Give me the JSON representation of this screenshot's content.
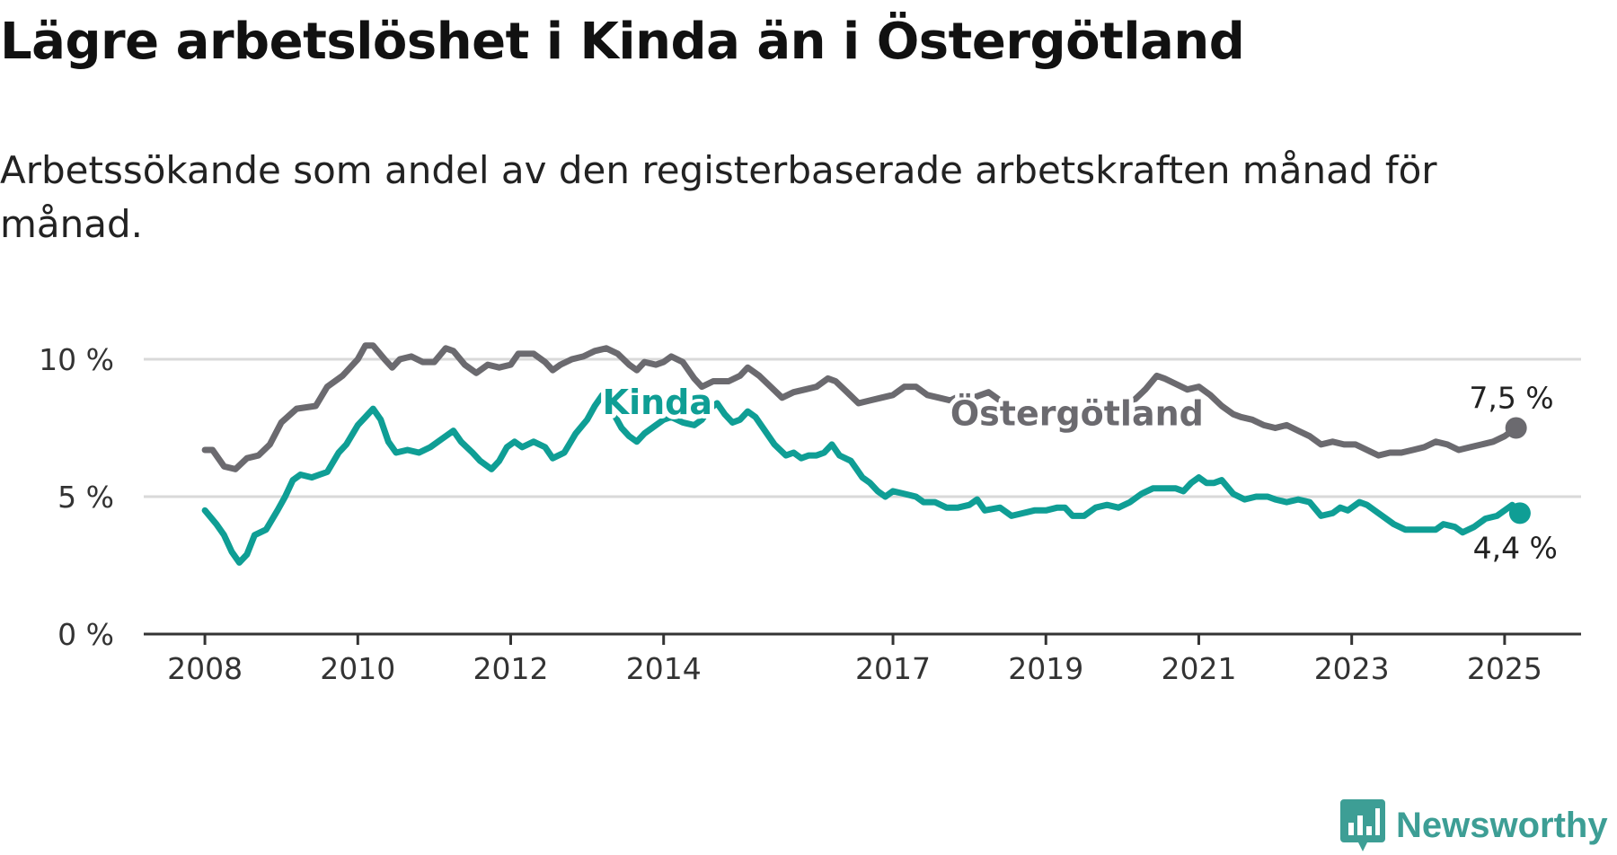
{
  "title": "Lägre arbetslöshet i Kinda än i Östergötland",
  "subtitle": "Arbetssökande som andel av den registerbaserade arbetskraften månad för månad.",
  "brand": {
    "name": "Newsworthy",
    "icon": "newsworthy-logo-icon",
    "color": "#3d9e95"
  },
  "chart_data": {
    "type": "line",
    "x_unit": "year",
    "xlim": [
      2007.2,
      2026.0
    ],
    "ylim": [
      0,
      10.5
    ],
    "grid": true,
    "y_ticks": [
      {
        "value": 0,
        "label": "0 %"
      },
      {
        "value": 5,
        "label": "5 %"
      },
      {
        "value": 10,
        "label": "10 %"
      }
    ],
    "x_ticks": [
      {
        "value": 2008,
        "label": "2008"
      },
      {
        "value": 2010,
        "label": "2010"
      },
      {
        "value": 2012,
        "label": "2012"
      },
      {
        "value": 2014,
        "label": "2014"
      },
      {
        "value": 2017,
        "label": "2017"
      },
      {
        "value": 2019,
        "label": "2019"
      },
      {
        "value": 2021,
        "label": "2021"
      },
      {
        "value": 2023,
        "label": "2023"
      },
      {
        "value": 2025,
        "label": "2025"
      }
    ],
    "series": [
      {
        "name": "Östergötland",
        "color": "#6b6a6f",
        "end_label": "7,5 %",
        "points": [
          [
            2008.0,
            6.7
          ],
          [
            2008.1,
            6.7
          ],
          [
            2008.25,
            6.1
          ],
          [
            2008.4,
            6.0
          ],
          [
            2008.55,
            6.4
          ],
          [
            2008.7,
            6.5
          ],
          [
            2008.85,
            6.9
          ],
          [
            2009.0,
            7.7
          ],
          [
            2009.2,
            8.2
          ],
          [
            2009.45,
            8.3
          ],
          [
            2009.6,
            9.0
          ],
          [
            2009.8,
            9.4
          ],
          [
            2010.0,
            10.0
          ],
          [
            2010.1,
            10.5
          ],
          [
            2010.2,
            10.5
          ],
          [
            2010.35,
            10.0
          ],
          [
            2010.45,
            9.7
          ],
          [
            2010.55,
            10.0
          ],
          [
            2010.7,
            10.1
          ],
          [
            2010.85,
            9.9
          ],
          [
            2011.0,
            9.9
          ],
          [
            2011.15,
            10.4
          ],
          [
            2011.25,
            10.3
          ],
          [
            2011.4,
            9.8
          ],
          [
            2011.55,
            9.5
          ],
          [
            2011.7,
            9.8
          ],
          [
            2011.85,
            9.7
          ],
          [
            2012.0,
            9.8
          ],
          [
            2012.1,
            10.2
          ],
          [
            2012.3,
            10.2
          ],
          [
            2012.45,
            9.9
          ],
          [
            2012.55,
            9.6
          ],
          [
            2012.65,
            9.8
          ],
          [
            2012.8,
            10.0
          ],
          [
            2012.95,
            10.1
          ],
          [
            2013.1,
            10.3
          ],
          [
            2013.25,
            10.4
          ],
          [
            2013.4,
            10.2
          ],
          [
            2013.55,
            9.8
          ],
          [
            2013.65,
            9.6
          ],
          [
            2013.75,
            9.9
          ],
          [
            2013.9,
            9.8
          ],
          [
            2014.0,
            9.9
          ],
          [
            2014.1,
            10.1
          ],
          [
            2014.25,
            9.9
          ],
          [
            2014.4,
            9.3
          ],
          [
            2014.5,
            9.0
          ],
          [
            2014.65,
            9.2
          ],
          [
            2014.85,
            9.2
          ],
          [
            2015.0,
            9.4
          ],
          [
            2015.1,
            9.7
          ],
          [
            2015.25,
            9.4
          ],
          [
            2015.4,
            9.0
          ],
          [
            2015.55,
            8.6
          ],
          [
            2015.7,
            8.8
          ],
          [
            2015.85,
            8.9
          ],
          [
            2016.0,
            9.0
          ],
          [
            2016.15,
            9.3
          ],
          [
            2016.25,
            9.2
          ],
          [
            2016.4,
            8.8
          ],
          [
            2016.55,
            8.4
          ],
          [
            2016.7,
            8.5
          ],
          [
            2016.85,
            8.6
          ],
          [
            2017.0,
            8.7
          ],
          [
            2017.15,
            9.0
          ],
          [
            2017.3,
            9.0
          ],
          [
            2017.45,
            8.7
          ],
          [
            2017.6,
            8.6
          ],
          [
            2017.75,
            8.5
          ],
          [
            2017.9,
            8.7
          ],
          [
            2018.05,
            8.6
          ],
          [
            2018.25,
            8.8
          ],
          [
            2018.4,
            8.5
          ],
          [
            2018.55,
            8.2
          ],
          [
            2018.7,
            8.2
          ],
          [
            2018.85,
            8.2
          ],
          [
            2019.0,
            8.2
          ],
          [
            2019.15,
            8.1
          ],
          [
            2019.3,
            8.0
          ],
          [
            2019.5,
            8.2
          ],
          [
            2019.65,
            8.1
          ],
          [
            2019.8,
            8.3
          ],
          [
            2020.0,
            8.2
          ],
          [
            2020.15,
            8.5
          ],
          [
            2020.3,
            8.9
          ],
          [
            2020.45,
            9.4
          ],
          [
            2020.55,
            9.3
          ],
          [
            2020.7,
            9.1
          ],
          [
            2020.85,
            8.9
          ],
          [
            2021.0,
            9.0
          ],
          [
            2021.15,
            8.7
          ],
          [
            2021.3,
            8.3
          ],
          [
            2021.45,
            8.0
          ],
          [
            2021.55,
            7.9
          ],
          [
            2021.7,
            7.8
          ],
          [
            2021.85,
            7.6
          ],
          [
            2022.0,
            7.5
          ],
          [
            2022.15,
            7.6
          ],
          [
            2022.3,
            7.4
          ],
          [
            2022.45,
            7.2
          ],
          [
            2022.6,
            6.9
          ],
          [
            2022.75,
            7.0
          ],
          [
            2022.9,
            6.9
          ],
          [
            2023.05,
            6.9
          ],
          [
            2023.2,
            6.7
          ],
          [
            2023.35,
            6.5
          ],
          [
            2023.5,
            6.6
          ],
          [
            2023.65,
            6.6
          ],
          [
            2023.8,
            6.7
          ],
          [
            2023.95,
            6.8
          ],
          [
            2024.1,
            7.0
          ],
          [
            2024.25,
            6.9
          ],
          [
            2024.4,
            6.7
          ],
          [
            2024.55,
            6.8
          ],
          [
            2024.7,
            6.9
          ],
          [
            2024.85,
            7.0
          ],
          [
            2025.0,
            7.2
          ],
          [
            2025.15,
            7.5
          ]
        ]
      },
      {
        "name": "Kinda",
        "color": "#0f9e95",
        "end_label": "4,4 %",
        "points": [
          [
            2008.0,
            4.5
          ],
          [
            2008.15,
            4.0
          ],
          [
            2008.25,
            3.6
          ],
          [
            2008.35,
            3.0
          ],
          [
            2008.45,
            2.6
          ],
          [
            2008.55,
            2.9
          ],
          [
            2008.65,
            3.6
          ],
          [
            2008.8,
            3.8
          ],
          [
            2008.95,
            4.5
          ],
          [
            2009.05,
            5.0
          ],
          [
            2009.15,
            5.6
          ],
          [
            2009.25,
            5.8
          ],
          [
            2009.4,
            5.7
          ],
          [
            2009.5,
            5.8
          ],
          [
            2009.6,
            5.9
          ],
          [
            2009.75,
            6.6
          ],
          [
            2009.85,
            6.9
          ],
          [
            2010.0,
            7.6
          ],
          [
            2010.1,
            7.9
          ],
          [
            2010.2,
            8.2
          ],
          [
            2010.3,
            7.8
          ],
          [
            2010.4,
            7.0
          ],
          [
            2010.5,
            6.6
          ],
          [
            2010.65,
            6.7
          ],
          [
            2010.8,
            6.6
          ],
          [
            2010.95,
            6.8
          ],
          [
            2011.1,
            7.1
          ],
          [
            2011.25,
            7.4
          ],
          [
            2011.35,
            7.0
          ],
          [
            2011.5,
            6.6
          ],
          [
            2011.6,
            6.3
          ],
          [
            2011.75,
            6.0
          ],
          [
            2011.85,
            6.3
          ],
          [
            2011.95,
            6.8
          ],
          [
            2012.05,
            7.0
          ],
          [
            2012.15,
            6.8
          ],
          [
            2012.3,
            7.0
          ],
          [
            2012.45,
            6.8
          ],
          [
            2012.55,
            6.4
          ],
          [
            2012.7,
            6.6
          ],
          [
            2012.85,
            7.3
          ],
          [
            2013.0,
            7.8
          ],
          [
            2013.1,
            8.3
          ],
          [
            2013.2,
            8.7
          ],
          [
            2013.35,
            8.0
          ],
          [
            2013.45,
            7.5
          ],
          [
            2013.55,
            7.2
          ],
          [
            2013.65,
            7.0
          ],
          [
            2013.75,
            7.3
          ],
          [
            2013.9,
            7.6
          ],
          [
            2014.0,
            7.8
          ],
          [
            2014.1,
            7.9
          ],
          [
            2014.25,
            7.7
          ],
          [
            2014.4,
            7.6
          ],
          [
            2014.5,
            7.8
          ],
          [
            2014.6,
            8.2
          ],
          [
            2014.7,
            8.4
          ],
          [
            2014.8,
            8.0
          ],
          [
            2014.9,
            7.7
          ],
          [
            2015.0,
            7.8
          ],
          [
            2015.1,
            8.1
          ],
          [
            2015.2,
            7.9
          ],
          [
            2015.3,
            7.5
          ],
          [
            2015.45,
            6.9
          ],
          [
            2015.6,
            6.5
          ],
          [
            2015.7,
            6.6
          ],
          [
            2015.8,
            6.4
          ],
          [
            2015.9,
            6.5
          ],
          [
            2016.0,
            6.5
          ],
          [
            2016.1,
            6.6
          ],
          [
            2016.2,
            6.9
          ],
          [
            2016.3,
            6.5
          ],
          [
            2016.45,
            6.3
          ],
          [
            2016.6,
            5.7
          ],
          [
            2016.7,
            5.5
          ],
          [
            2016.8,
            5.2
          ],
          [
            2016.9,
            5.0
          ],
          [
            2017.0,
            5.2
          ],
          [
            2017.15,
            5.1
          ],
          [
            2017.3,
            5.0
          ],
          [
            2017.4,
            4.8
          ],
          [
            2017.55,
            4.8
          ],
          [
            2017.7,
            4.6
          ],
          [
            2017.85,
            4.6
          ],
          [
            2018.0,
            4.7
          ],
          [
            2018.1,
            4.9
          ],
          [
            2018.2,
            4.5
          ],
          [
            2018.4,
            4.6
          ],
          [
            2018.55,
            4.3
          ],
          [
            2018.7,
            4.4
          ],
          [
            2018.85,
            4.5
          ],
          [
            2019.0,
            4.5
          ],
          [
            2019.15,
            4.6
          ],
          [
            2019.25,
            4.6
          ],
          [
            2019.35,
            4.3
          ],
          [
            2019.5,
            4.3
          ],
          [
            2019.65,
            4.6
          ],
          [
            2019.8,
            4.7
          ],
          [
            2019.95,
            4.6
          ],
          [
            2020.1,
            4.8
          ],
          [
            2020.25,
            5.1
          ],
          [
            2020.4,
            5.3
          ],
          [
            2020.55,
            5.3
          ],
          [
            2020.7,
            5.3
          ],
          [
            2020.8,
            5.2
          ],
          [
            2020.9,
            5.5
          ],
          [
            2021.0,
            5.7
          ],
          [
            2021.1,
            5.5
          ],
          [
            2021.2,
            5.5
          ],
          [
            2021.3,
            5.6
          ],
          [
            2021.45,
            5.1
          ],
          [
            2021.6,
            4.9
          ],
          [
            2021.75,
            5.0
          ],
          [
            2021.9,
            5.0
          ],
          [
            2022.0,
            4.9
          ],
          [
            2022.15,
            4.8
          ],
          [
            2022.3,
            4.9
          ],
          [
            2022.45,
            4.8
          ],
          [
            2022.6,
            4.3
          ],
          [
            2022.75,
            4.4
          ],
          [
            2022.85,
            4.6
          ],
          [
            2022.95,
            4.5
          ],
          [
            2023.1,
            4.8
          ],
          [
            2023.2,
            4.7
          ],
          [
            2023.3,
            4.5
          ],
          [
            2023.45,
            4.2
          ],
          [
            2023.55,
            4.0
          ],
          [
            2023.7,
            3.8
          ],
          [
            2023.85,
            3.8
          ],
          [
            2024.0,
            3.8
          ],
          [
            2024.1,
            3.8
          ],
          [
            2024.2,
            4.0
          ],
          [
            2024.35,
            3.9
          ],
          [
            2024.45,
            3.7
          ],
          [
            2024.6,
            3.9
          ],
          [
            2024.75,
            4.2
          ],
          [
            2024.9,
            4.3
          ],
          [
            2025.0,
            4.5
          ],
          [
            2025.1,
            4.7
          ],
          [
            2025.2,
            4.4
          ]
        ]
      }
    ]
  }
}
